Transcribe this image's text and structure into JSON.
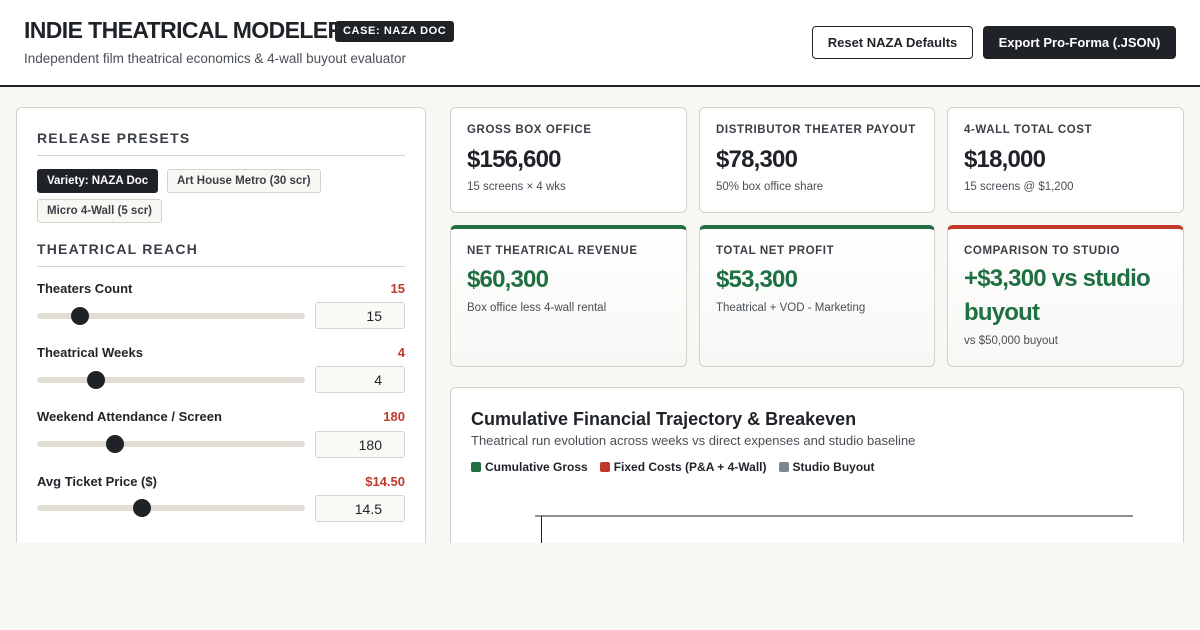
{
  "header": {
    "title": "INDIE THEATRICAL MODELER",
    "badge": "CASE: NAZA DOC",
    "subtitle": "Independent film theatrical economics & 4-wall buyout evaluator",
    "reset_label": "Reset NAZA Defaults",
    "export_label": "Export Pro-Forma (.JSON)"
  },
  "presets": {
    "title": "RELEASE PRESETS",
    "items": [
      {
        "label": "Variety: NAZA Doc",
        "active": true
      },
      {
        "label": "Art House Metro (30 scr)",
        "active": false
      },
      {
        "label": "Micro 4-Wall (5 scr)",
        "active": false
      }
    ]
  },
  "reach": {
    "title": "THEATRICAL REACH",
    "fields": [
      {
        "label": "Theaters Count",
        "display": "15",
        "input": "15",
        "fraction": 0.16
      },
      {
        "label": "Theatrical Weeks",
        "display": "4",
        "input": "4",
        "fraction": 0.22
      },
      {
        "label": "Weekend Attendance / Screen",
        "display": "180",
        "input": "180",
        "fraction": 0.29
      },
      {
        "label": "Avg Ticket Price ($)",
        "display": "$14.50",
        "input": "14.5",
        "fraction": 0.39
      }
    ]
  },
  "kpis": [
    {
      "label": "GROSS BOX OFFICE",
      "value": "$156,600",
      "sub": "15 screens × 4 wks"
    },
    {
      "label": "DISTRIBUTOR THEATER PAYOUT",
      "value": "$78,300",
      "sub": "50% box office share"
    },
    {
      "label": "4-WALL TOTAL COST",
      "value": "$18,000",
      "sub": "15 screens @ $1,200"
    },
    {
      "label": "NET THEATRICAL REVENUE",
      "value": "$60,300",
      "sub": "Box office less 4-wall rental"
    },
    {
      "label": "TOTAL NET PROFIT",
      "value": "$53,300",
      "sub": "Theatrical + VOD - Marketing"
    },
    {
      "label": "COMPARISON TO STUDIO",
      "value": "+$3,300 vs studio buyout",
      "sub": "vs $50,000 buyout"
    }
  ],
  "chart": {
    "title": "Cumulative Financial Trajectory & Breakeven",
    "subtitle": "Theatrical run evolution across weeks vs direct expenses and studio baseline",
    "legend": [
      {
        "label": "Cumulative Gross",
        "color": "#1e6f42"
      },
      {
        "label": "Fixed Costs (P&A + 4-Wall)",
        "color": "#c0392b"
      },
      {
        "label": "Studio Buyout",
        "color": "#7d8591"
      }
    ]
  }
}
